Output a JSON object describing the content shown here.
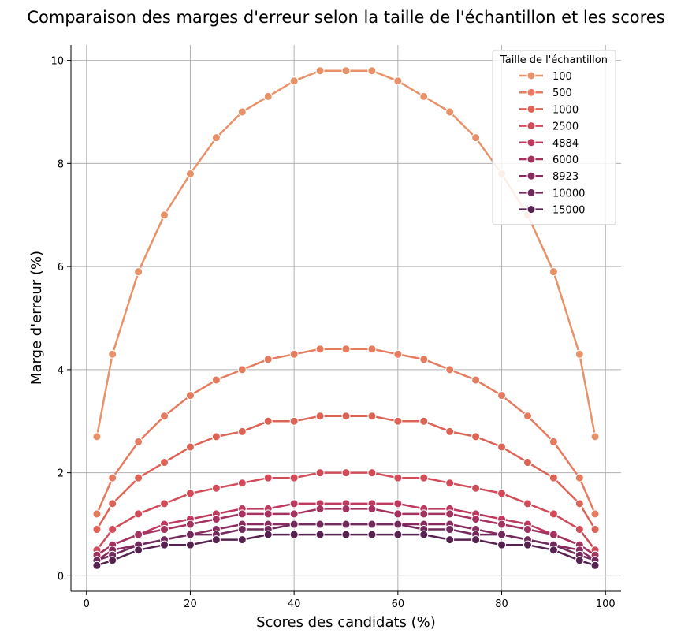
{
  "chart_data": {
    "type": "line",
    "title": "Comparaison des marges d'erreur selon la taille de l'échantillon et les scores",
    "xlabel": "Scores des candidats (%)",
    "ylabel": "Marge d'erreur (%)",
    "xlim": [
      -3,
      103
    ],
    "ylim": [
      -0.3,
      10.3
    ],
    "xticks": [
      0,
      20,
      40,
      60,
      80,
      100
    ],
    "yticks": [
      0,
      2,
      4,
      6,
      8,
      10
    ],
    "grid": true,
    "legend_title": "Taille de l'échantillon",
    "legend_position": "top-right",
    "x": [
      2,
      5,
      10,
      15,
      20,
      25,
      30,
      35,
      40,
      45,
      50,
      55,
      60,
      65,
      70,
      75,
      80,
      85,
      90,
      95,
      98
    ],
    "series": [
      {
        "name": "100",
        "color": "#e8926a",
        "values": [
          2.7,
          4.3,
          5.9,
          7.0,
          7.8,
          8.5,
          9.0,
          9.3,
          9.6,
          9.8,
          9.8,
          9.8,
          9.6,
          9.3,
          9.0,
          8.5,
          7.8,
          7.0,
          5.9,
          4.3,
          2.7
        ]
      },
      {
        "name": "500",
        "color": "#e57c5f",
        "values": [
          1.2,
          1.9,
          2.6,
          3.1,
          3.5,
          3.8,
          4.0,
          4.2,
          4.3,
          4.4,
          4.4,
          4.4,
          4.3,
          4.2,
          4.0,
          3.8,
          3.5,
          3.1,
          2.6,
          1.9,
          1.2
        ]
      },
      {
        "name": "1000",
        "color": "#dd6356",
        "values": [
          0.9,
          1.4,
          1.9,
          2.2,
          2.5,
          2.7,
          2.8,
          3.0,
          3.0,
          3.1,
          3.1,
          3.1,
          3.0,
          3.0,
          2.8,
          2.7,
          2.5,
          2.2,
          1.9,
          1.4,
          0.9
        ]
      },
      {
        "name": "2500",
        "color": "#d14b59",
        "values": [
          0.5,
          0.9,
          1.2,
          1.4,
          1.6,
          1.7,
          1.8,
          1.9,
          1.9,
          2.0,
          2.0,
          2.0,
          1.9,
          1.9,
          1.8,
          1.7,
          1.6,
          1.4,
          1.2,
          0.9,
          0.5
        ]
      },
      {
        "name": "4884",
        "color": "#bd3a5e",
        "values": [
          0.4,
          0.6,
          0.8,
          1.0,
          1.1,
          1.2,
          1.3,
          1.3,
          1.4,
          1.4,
          1.4,
          1.4,
          1.4,
          1.3,
          1.3,
          1.2,
          1.1,
          1.0,
          0.8,
          0.6,
          0.4
        ]
      },
      {
        "name": "6000",
        "color": "#a4325f",
        "values": [
          0.4,
          0.6,
          0.8,
          0.9,
          1.0,
          1.1,
          1.2,
          1.2,
          1.2,
          1.3,
          1.3,
          1.3,
          1.2,
          1.2,
          1.2,
          1.1,
          1.0,
          0.9,
          0.8,
          0.6,
          0.4
        ]
      },
      {
        "name": "8923",
        "color": "#8a2b5f",
        "values": [
          0.3,
          0.5,
          0.6,
          0.7,
          0.8,
          0.9,
          1.0,
          1.0,
          1.0,
          1.0,
          1.0,
          1.0,
          1.0,
          1.0,
          1.0,
          0.9,
          0.8,
          0.7,
          0.6,
          0.5,
          0.3
        ]
      },
      {
        "name": "10000",
        "color": "#702a5b",
        "values": [
          0.3,
          0.4,
          0.6,
          0.7,
          0.8,
          0.8,
          0.9,
          0.9,
          1.0,
          1.0,
          1.0,
          1.0,
          1.0,
          0.9,
          0.9,
          0.8,
          0.8,
          0.7,
          0.6,
          0.4,
          0.3
        ]
      },
      {
        "name": "15000",
        "color": "#56224f",
        "values": [
          0.2,
          0.3,
          0.5,
          0.6,
          0.6,
          0.7,
          0.7,
          0.8,
          0.8,
          0.8,
          0.8,
          0.8,
          0.8,
          0.8,
          0.7,
          0.7,
          0.6,
          0.6,
          0.5,
          0.3,
          0.2
        ]
      }
    ]
  }
}
